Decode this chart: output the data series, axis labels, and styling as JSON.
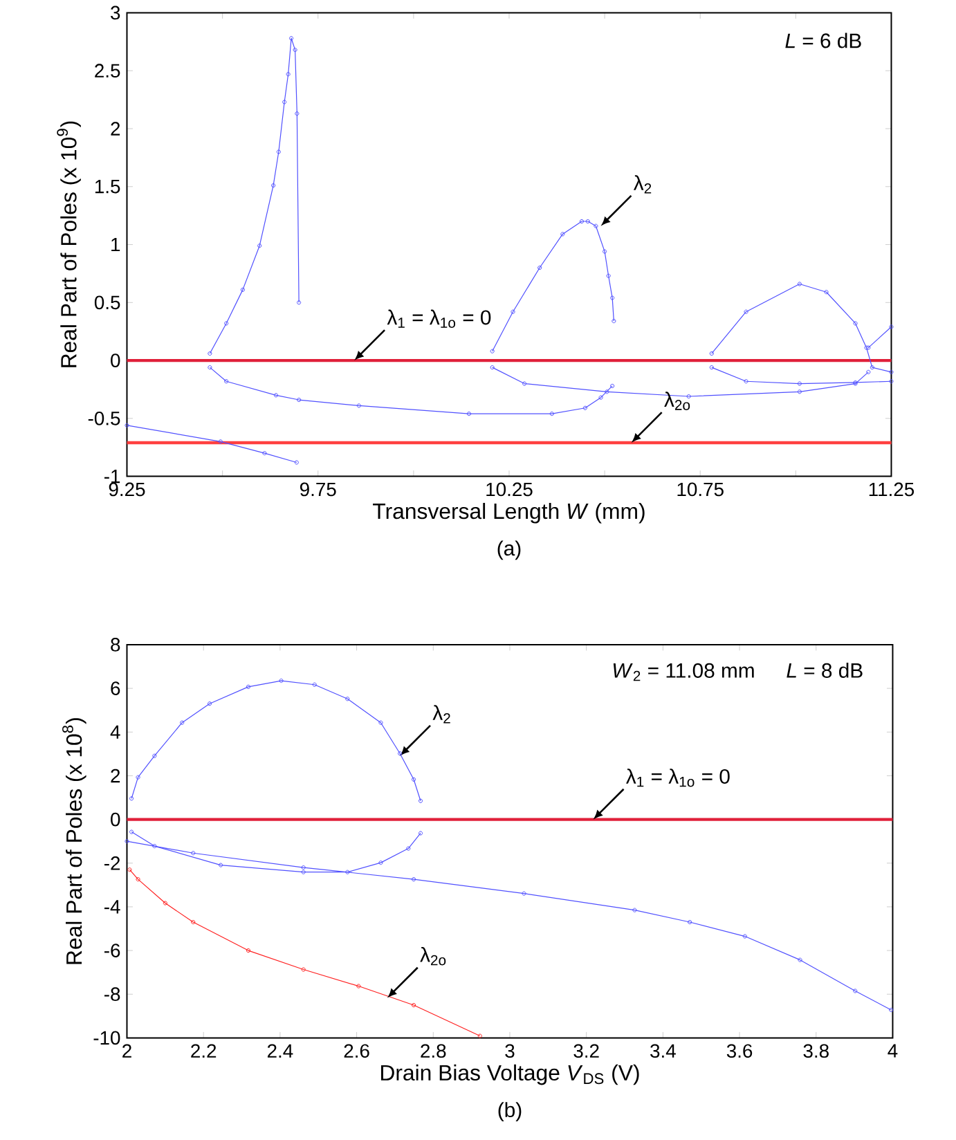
{
  "chart_data": [
    {
      "type": "line",
      "subtitle": "(a)",
      "xlabel": "Transversal Length *W* (mm)",
      "ylabel": "Real Part of Poles (x 10$^{9}$)",
      "xlim": [
        9.25,
        11.25
      ],
      "ylim": [
        -1,
        3
      ],
      "xticks": [
        9.25,
        {
          "value": 9.5,
          "label": null
        },
        9.75,
        {
          "value": 10,
          "label": null
        },
        10.25,
        {
          "value": 10.5,
          "label": null
        },
        10.75,
        {
          "value": 11,
          "label": null
        },
        11.25
      ],
      "yticks": [
        -1,
        -0.5,
        0,
        0.5,
        1,
        1.5,
        2,
        2.5,
        3
      ],
      "marker": "circle",
      "grid": false,
      "annotations": [
        "*L* = 6 dB",
        {
          "text": "λ$_{1}$ = λ$_{1o}$ = 0",
          "x": 9.845,
          "y": 0
        },
        {
          "text": "λ$_{2}$",
          "x": 10.49,
          "y": 1.16
        },
        {
          "text": "λ$_{2o}$",
          "x": 10.57,
          "y": -0.71
        }
      ],
      "series": [
        {
          "type": "line",
          "marker": "none",
          "color": "#e0203a",
          "x": [
            9.25,
            11.25
          ],
          "values": [
            0,
            0
          ]
        },
        {
          "type": "line",
          "marker": "none",
          "color": "#ff4040",
          "x": [
            9.25,
            11.25
          ],
          "values": [
            -0.71,
            -0.71
          ]
        },
        {
          "color": "#5050ff",
          "x": [
            9.467,
            9.51,
            9.553,
            9.597,
            9.633,
            9.647,
            9.662,
            9.672,
            9.68,
            9.69,
            9.695,
            9.7
          ],
          "values": [
            0.06,
            0.32,
            0.61,
            0.99,
            1.51,
            1.8,
            2.23,
            2.47,
            2.78,
            2.68,
            2.13,
            0.5
          ]
        },
        {
          "color": "#5050ff",
          "x": [
            9.467,
            9.51,
            9.64,
            9.7,
            9.857,
            10.145,
            10.362,
            10.449,
            10.49,
            10.52
          ],
          "values": [
            -0.06,
            -0.18,
            -0.3,
            -0.34,
            -0.39,
            -0.46,
            -0.46,
            -0.41,
            -0.32,
            -0.22
          ]
        },
        {
          "color": "#5050ff",
          "x": [
            9.25,
            9.495,
            9.61,
            9.694
          ],
          "values": [
            -0.56,
            -0.7,
            -0.8,
            -0.88
          ]
        },
        {
          "color": "#5050ff",
          "x": [
            10.206,
            10.26,
            10.33,
            10.39,
            10.44,
            10.456,
            10.477,
            10.5,
            10.51,
            10.52,
            10.524
          ],
          "values": [
            0.08,
            0.42,
            0.8,
            1.09,
            1.2,
            1.2,
            1.16,
            0.94,
            0.73,
            0.54,
            0.34
          ]
        },
        {
          "color": "#5050ff",
          "x": [
            10.206,
            10.29,
            10.506,
            10.72,
            11.01,
            11.156,
            11.19
          ],
          "values": [
            -0.06,
            -0.2,
            -0.27,
            -0.31,
            -0.27,
            -0.2,
            -0.1
          ]
        },
        {
          "color": "#5050ff",
          "x": [
            10.78,
            10.87,
            11.01,
            11.08,
            11.156,
            11.185,
            11.2,
            11.25
          ],
          "values": [
            0.06,
            0.42,
            0.66,
            0.59,
            0.32,
            0.11,
            -0.06,
            -0.1
          ]
        },
        {
          "color": "#5050ff",
          "x": [
            10.78,
            10.87,
            11.01,
            11.156,
            11.25
          ],
          "values": [
            -0.06,
            -0.18,
            -0.2,
            -0.19,
            -0.18
          ]
        },
        {
          "color": "#5050ff",
          "x": [
            11.19,
            11.25
          ],
          "values": [
            0.11,
            0.29
          ]
        }
      ]
    },
    {
      "type": "line",
      "subtitle": "(b)",
      "xlabel": "Drain Bias Voltage *V*$_{DS}$ (V)",
      "ylabel": "Real Part of Poles (x 10$^{8}$)",
      "xlim": [
        2,
        4
      ],
      "ylim": [
        -10,
        8
      ],
      "xticks": [
        2,
        2.2,
        2.4,
        2.6,
        2.8,
        3,
        3.2,
        3.4,
        3.6,
        3.8,
        4
      ],
      "yticks": [
        -10,
        -8,
        -6,
        -4,
        -2,
        0,
        2,
        4,
        6,
        8
      ],
      "marker": "circle",
      "grid": false,
      "annotations": [
        "*W*$_{2}$ = 11.08 mm",
        "*L* = 8 dB",
        {
          "text": "λ$_{2}$",
          "x": 2.713,
          "y": 2.91
        },
        {
          "text": "λ$_{1}$ = λ$_{1o}$ = 0",
          "x": 3.218,
          "y": 0
        },
        {
          "text": "λ$_{2o}$",
          "x": 2.68,
          "y": -8.17
        }
      ],
      "series": [
        {
          "type": "line",
          "marker": "none",
          "color": "#e0203a",
          "x": [
            2,
            4
          ],
          "values": [
            0,
            0
          ]
        },
        {
          "color": "#5050ff",
          "x": [
            2.012,
            2.029,
            2.072,
            2.144,
            2.216,
            2.317,
            2.403,
            2.49,
            2.576,
            2.663,
            2.713,
            2.749,
            2.767
          ],
          "values": [
            0.96,
            1.93,
            2.91,
            4.43,
            5.3,
            6.07,
            6.35,
            6.17,
            5.52,
            4.43,
            3.02,
            1.83,
            0.85
          ]
        },
        {
          "color": "#5050ff",
          "x": [
            2.012,
            2.072,
            2.245,
            2.461,
            2.576,
            2.663,
            2.735,
            2.767
          ],
          "values": [
            -0.57,
            -1.22,
            -2.09,
            -2.41,
            -2.41,
            -1.98,
            -1.33,
            -0.63
          ]
        },
        {
          "color": "#5050ff",
          "x": [
            2,
            2.173,
            2.461,
            2.749,
            3.037,
            3.326,
            3.47,
            3.614,
            3.758,
            3.902,
            3.996
          ],
          "values": [
            -1,
            -1.54,
            -2.2,
            -2.74,
            -3.39,
            -4.15,
            -4.7,
            -5.35,
            -6.43,
            -7.85,
            -8.72
          ]
        },
        {
          "color": "#ff2020",
          "x": [
            2.007,
            2.029,
            2.1,
            2.173,
            2.317,
            2.461,
            2.605,
            2.749,
            2.922
          ],
          "values": [
            -2.3,
            -2.74,
            -3.83,
            -4.7,
            -6,
            -6.87,
            -7.63,
            -8.5,
            -9.91
          ]
        }
      ]
    }
  ]
}
